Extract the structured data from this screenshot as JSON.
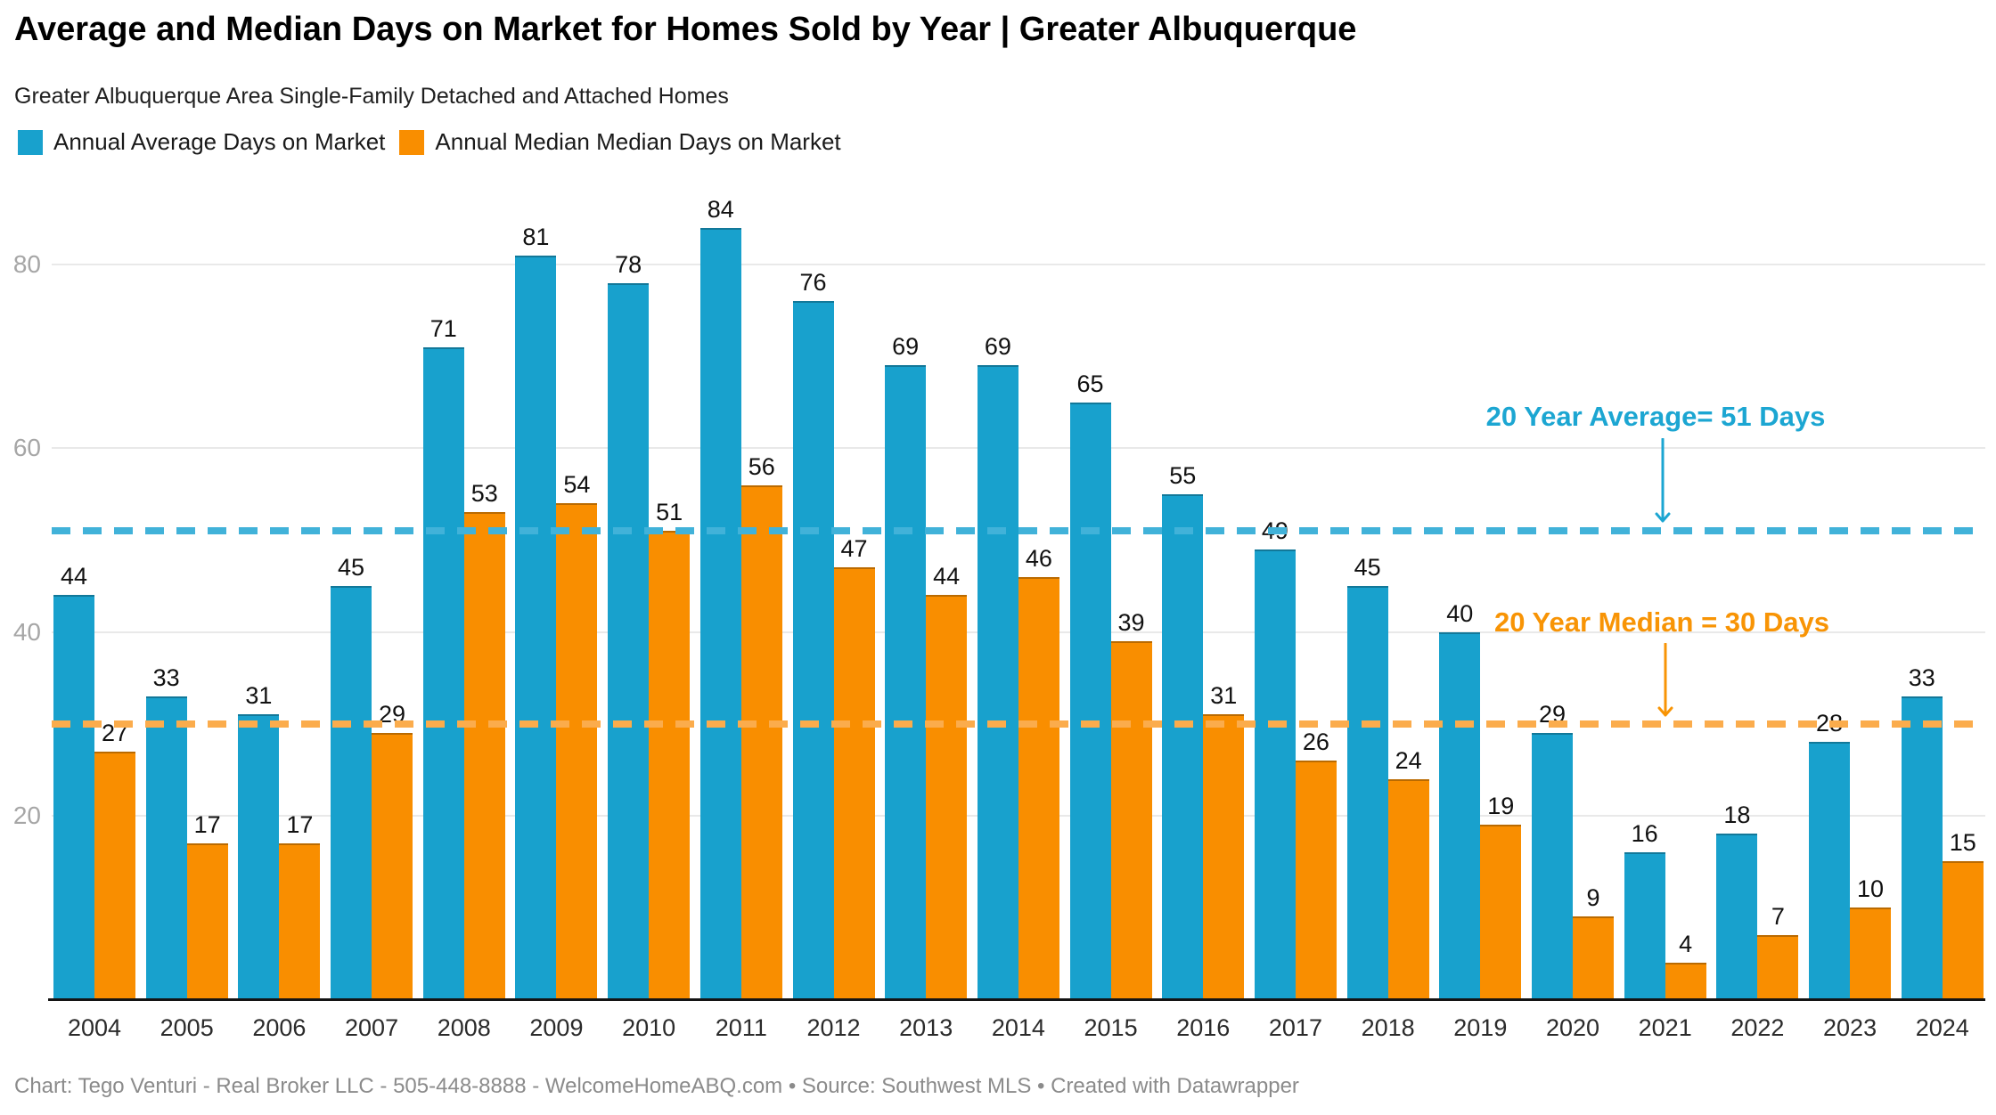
{
  "header": {
    "title": "Average and Median Days on Market for Homes Sold by Year | Greater Albuquerque",
    "subtitle": "Greater Albuquerque Area Single-Family Detached and Attached Homes",
    "legend": [
      {
        "label": "Annual Average Days on Market",
        "color": "#18a1cd"
      },
      {
        "label": "Annual Median Median Days on Market",
        "color": "#f98e00"
      }
    ]
  },
  "chart_data": {
    "type": "bar",
    "title": "Average and Median Days on Market for Homes Sold by Year | Greater Albuquerque",
    "subtitle": "Greater Albuquerque Area Single-Family Detached and Attached Homes",
    "categories": [
      2004,
      2005,
      2006,
      2007,
      2008,
      2009,
      2010,
      2011,
      2012,
      2013,
      2014,
      2015,
      2016,
      2017,
      2018,
      2019,
      2020,
      2021,
      2022,
      2023,
      2024
    ],
    "series": [
      {
        "name": "Annual Average Days on Market",
        "color": "#18a1cd",
        "values": [
          44,
          33,
          31,
          45,
          71,
          81,
          78,
          84,
          76,
          69,
          69,
          65,
          55,
          49,
          45,
          40,
          29,
          16,
          18,
          28,
          33
        ]
      },
      {
        "name": "Annual Median Median Days on Market",
        "color": "#f98e00",
        "values": [
          27,
          17,
          17,
          29,
          53,
          54,
          51,
          56,
          47,
          44,
          46,
          39,
          31,
          26,
          24,
          19,
          9,
          4,
          7,
          10,
          15
        ]
      }
    ],
    "xlabel": "",
    "ylabel": "",
    "y_ticks": [
      20,
      40,
      60,
      80
    ],
    "ylim": [
      0,
      86.5
    ],
    "grid": "horizontal",
    "legend_position": "top-left",
    "reference_lines": [
      {
        "label": "20 Year Average= 51 Days",
        "value": 51,
        "line_color": "#41b2d9",
        "text_color": "#1ca6d2"
      },
      {
        "label": "20 Year Median = 30 Days",
        "value": 30,
        "line_color": "#fbac4c",
        "text_color": "#f89405"
      }
    ]
  },
  "footer": {
    "text": "Chart: Tego Venturi - Real Broker LLC - 505-448-8888 - WelcomeHomeABQ.com • Source: Southwest MLS • Created with Datawrapper"
  }
}
